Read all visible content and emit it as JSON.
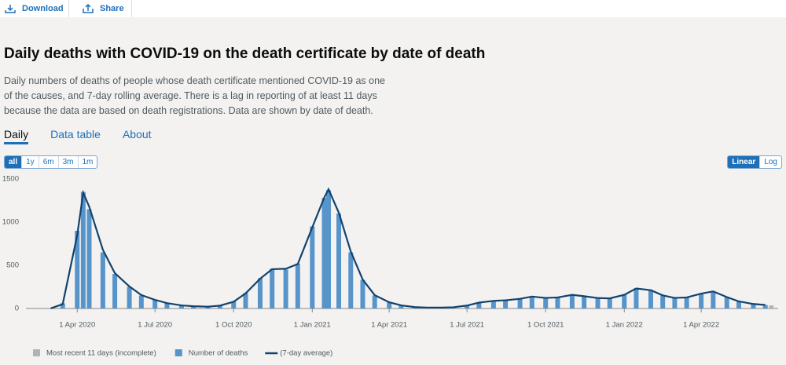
{
  "toolbar": {
    "download": "Download",
    "share": "Share"
  },
  "title": "Daily deaths with COVID-19 on the death certificate by date of death",
  "description": "Daily numbers of deaths of people whose death certificate mentioned COVID-19 as one of the causes, and 7-day rolling average. There is a lag in reporting of at least 11 days because the data are based on death registrations. Data are shown by date of death.",
  "tabs": [
    "Daily",
    "Data table",
    "About"
  ],
  "range_buttons": [
    "all",
    "1y",
    "6m",
    "3m",
    "1m"
  ],
  "scale_buttons": [
    "Linear",
    "Log"
  ],
  "chart_data": {
    "type": "bar",
    "x": [
      "2020-03-01",
      "2020-03-15",
      "2020-04-01",
      "2020-04-08",
      "2020-04-15",
      "2020-05-01",
      "2020-05-15",
      "2020-06-01",
      "2020-06-15",
      "2020-07-01",
      "2020-07-15",
      "2020-08-01",
      "2020-08-15",
      "2020-09-01",
      "2020-09-15",
      "2020-10-01",
      "2020-10-15",
      "2020-11-01",
      "2020-11-15",
      "2020-12-01",
      "2020-12-15",
      "2021-01-01",
      "2021-01-15",
      "2021-01-20",
      "2021-02-01",
      "2021-02-15",
      "2021-03-01",
      "2021-03-15",
      "2021-04-01",
      "2021-04-15",
      "2021-05-01",
      "2021-05-15",
      "2021-06-01",
      "2021-06-15",
      "2021-07-01",
      "2021-07-15",
      "2021-08-01",
      "2021-08-15",
      "2021-09-01",
      "2021-09-15",
      "2021-10-01",
      "2021-10-15",
      "2021-11-01",
      "2021-11-15",
      "2021-12-01",
      "2021-12-15",
      "2022-01-01",
      "2022-01-15",
      "2022-02-01",
      "2022-02-15",
      "2022-03-01",
      "2022-03-15",
      "2022-04-01",
      "2022-04-15",
      "2022-05-01",
      "2022-05-15",
      "2022-06-01",
      "2022-06-15",
      "2022-06-22"
    ],
    "series": [
      {
        "name": "Most recent 11 days (incomplete)",
        "type": "bar",
        "color": "#b1b4b6",
        "values": [
          null,
          null,
          null,
          null,
          null,
          null,
          null,
          null,
          null,
          null,
          null,
          null,
          null,
          null,
          null,
          null,
          null,
          null,
          null,
          null,
          null,
          null,
          null,
          null,
          null,
          null,
          null,
          null,
          null,
          null,
          null,
          null,
          null,
          null,
          null,
          null,
          null,
          null,
          null,
          null,
          null,
          null,
          null,
          null,
          null,
          null,
          null,
          null,
          null,
          null,
          null,
          null,
          null,
          null,
          null,
          null,
          null,
          null,
          35
        ]
      },
      {
        "name": "Number of deaths",
        "type": "bar",
        "color": "#5694ca",
        "values": [
          2,
          60,
          900,
          1350,
          1150,
          650,
          400,
          250,
          150,
          100,
          60,
          35,
          25,
          20,
          35,
          80,
          180,
          350,
          460,
          450,
          520,
          950,
          1280,
          1370,
          1100,
          650,
          330,
          150,
          70,
          35,
          15,
          10,
          10,
          15,
          35,
          70,
          90,
          95,
          115,
          140,
          120,
          130,
          160,
          140,
          120,
          115,
          160,
          235,
          210,
          150,
          120,
          130,
          175,
          195,
          130,
          80,
          50,
          40,
          null
        ]
      },
      {
        "name": "(7-day average)",
        "type": "line",
        "color": "#12436d",
        "values": [
          2,
          50,
          850,
          1340,
          1180,
          680,
          410,
          255,
          155,
          100,
          62,
          36,
          26,
          21,
          33,
          78,
          175,
          345,
          455,
          460,
          515,
          940,
          1285,
          1380,
          1110,
          660,
          335,
          155,
          72,
          36,
          16,
          11,
          10,
          14,
          34,
          68,
          88,
          95,
          112,
          138,
          122,
          128,
          158,
          142,
          121,
          117,
          158,
          232,
          212,
          152,
          122,
          128,
          172,
          198,
          132,
          82,
          52,
          41,
          null
        ]
      }
    ],
    "xlim": [
      "2020-02-01",
      "2022-06-30"
    ],
    "xticks": [
      {
        "value": "2020-04-01",
        "label": "1 Apr 2020"
      },
      {
        "value": "2020-07-01",
        "label": "1 Jul 2020"
      },
      {
        "value": "2020-10-01",
        "label": "1 Oct 2020"
      },
      {
        "value": "2021-01-01",
        "label": "1 Jan 2021"
      },
      {
        "value": "2021-04-01",
        "label": "1 Apr 2021"
      },
      {
        "value": "2021-07-01",
        "label": "1 Jul 2021"
      },
      {
        "value": "2021-10-01",
        "label": "1 Oct 2021"
      },
      {
        "value": "2022-01-01",
        "label": "1 Jan 2022"
      },
      {
        "value": "2022-04-01",
        "label": "1 Apr 2022"
      }
    ],
    "ylim": [
      0,
      1500
    ],
    "yticks": [
      0,
      500,
      1000,
      1500
    ],
    "grid": false,
    "legend": "bottom"
  }
}
